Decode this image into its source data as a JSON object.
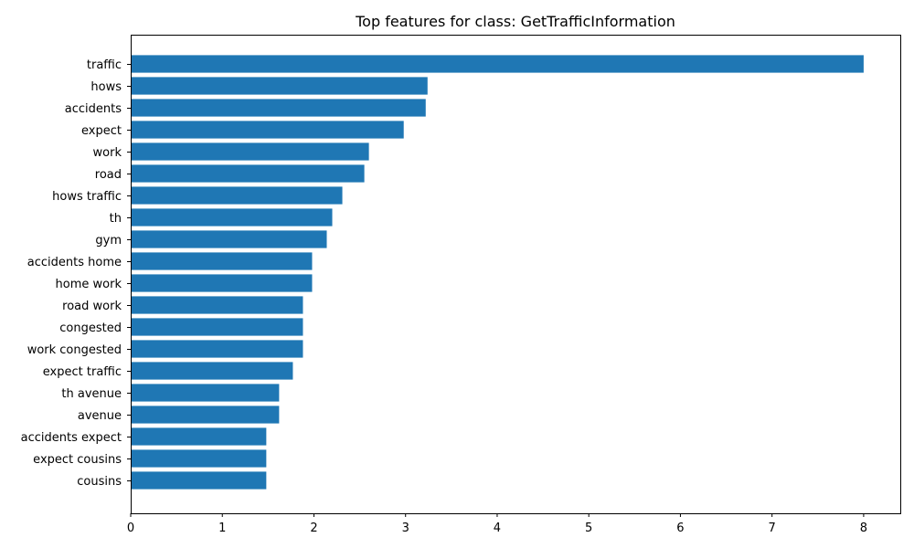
{
  "chart_data": {
    "type": "bar",
    "orientation": "horizontal",
    "title": "Top features for class: GetTrafficInformation",
    "xlabel": "",
    "ylabel": "",
    "categories": [
      "traffic",
      "hows",
      "accidents",
      "expect",
      "work",
      "road",
      "hows traffic",
      "th",
      "gym",
      "accidents home",
      "home work",
      "road work",
      "congested",
      "work congested",
      "expect traffic",
      "th avenue",
      "avenue",
      "accidents expect",
      "expect cousins",
      "cousins"
    ],
    "values": [
      8.0,
      3.24,
      3.22,
      2.98,
      2.6,
      2.55,
      2.31,
      2.2,
      2.14,
      1.98,
      1.98,
      1.88,
      1.88,
      1.88,
      1.77,
      1.62,
      1.62,
      1.48,
      1.48,
      1.48
    ],
    "xlim": [
      0,
      8.4
    ],
    "xticks": [
      "0",
      "1",
      "2",
      "3",
      "4",
      "5",
      "6",
      "7",
      "8"
    ],
    "bar_color": "#1f77b4",
    "grid": false,
    "legend": false
  }
}
